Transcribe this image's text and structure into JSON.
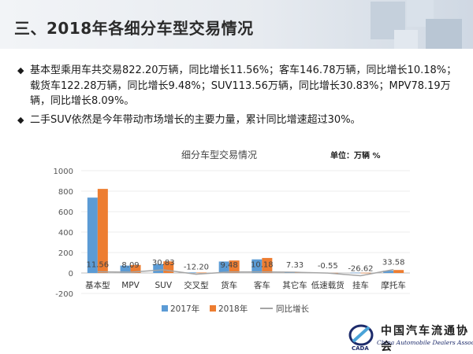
{
  "page": {
    "title": "三、2018年各细分车型交易情况",
    "bullets": [
      "基本型乘用车共交易822.20万辆，同比增长11.56%；客车146.78万辆，同比增长10.18%；载货车122.28万辆，同比增长9.48%；SUV113.56万辆，同比增长30.83%；MPV78.19万辆，同比增长8.09%。",
      "二手SUV依然是今年带动市场增长的主要力量，累计同比增速超过30%。"
    ],
    "bullet_icon": "diamond-bullet-icon",
    "logo": {
      "cn": "中国汽车流通协会",
      "en": "China Automobile Dealers Association"
    }
  },
  "chart_data": {
    "type": "bar",
    "title": "细分车型交易情况",
    "unit_label": "单位：万辆  %",
    "categories": [
      "基本型",
      "MPV",
      "SUV",
      "交叉型",
      "货车",
      "客车",
      "其它车",
      "低速载货",
      "挂车",
      "摩托车"
    ],
    "series": [
      {
        "name": "2017年",
        "type": "bar",
        "color": "#5b9bd5",
        "values": [
          737,
          72,
          87,
          5,
          112,
          133,
          6,
          1,
          3,
          22
        ]
      },
      {
        "name": "2018年",
        "type": "bar",
        "color": "#ed7d31",
        "values": [
          822.2,
          78.19,
          113.56,
          4,
          122.28,
          146.78,
          6,
          1,
          2,
          29
        ]
      },
      {
        "name": "同比增长",
        "type": "line",
        "color": "#a5a5a5",
        "values": [
          11.56,
          8.09,
          30.83,
          -12.2,
          9.48,
          10.18,
          7.33,
          -0.55,
          -26.62,
          33.58
        ],
        "labels": [
          "11.56",
          "8.09",
          "30.83",
          "-12.20",
          "9.48",
          "10.18",
          "7.33",
          "-0.55",
          "-26.62",
          "33.58"
        ]
      }
    ],
    "yticks": [
      "1000",
      "800",
      "600",
      "400",
      "200",
      "0",
      "-200"
    ],
    "ylim": [
      -200,
      1000
    ],
    "legend_position": "bottom"
  }
}
